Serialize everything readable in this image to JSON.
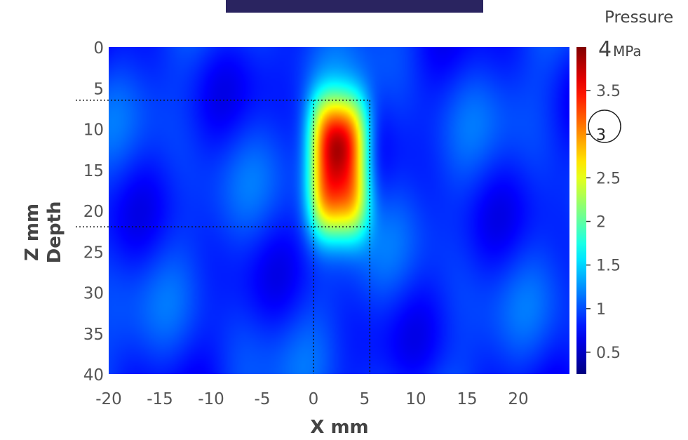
{
  "chart_data": {
    "type": "heatmap",
    "title": "",
    "xlabel": "X mm",
    "ylabel_line1": "Depth",
    "ylabel_line2": "Z mm",
    "colorbar_label": "Pressure",
    "colorbar_max_number": "4",
    "colorbar_unit": "MPa",
    "xlim": [
      -20,
      25
    ],
    "ylim": [
      0,
      40
    ],
    "y_axis_direction": "down",
    "x_ticks": [
      -20,
      -15,
      -10,
      -5,
      0,
      5,
      10,
      15,
      20
    ],
    "y_ticks": [
      0,
      5,
      10,
      15,
      20,
      25,
      30,
      35,
      40
    ],
    "colorbar_range": [
      0.25,
      4
    ],
    "colorbar_ticks": [
      0.5,
      1,
      1.5,
      2,
      2.5,
      3,
      3.5
    ],
    "colormap": "jet",
    "highlighted_colorbar_tick": 3,
    "focal_region": {
      "x_range": [
        0,
        5.5
      ],
      "z_range": [
        6.5,
        22
      ]
    },
    "background_pressure": 0.9,
    "peak": {
      "x": 2.5,
      "z": 12.5,
      "pressure": 3.9
    }
  },
  "header_bar_color": "#2a2460"
}
